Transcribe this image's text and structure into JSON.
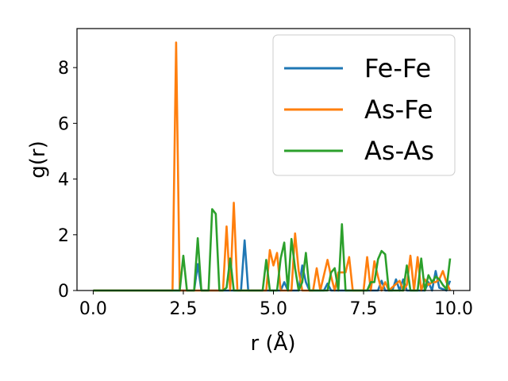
{
  "chart_data": {
    "type": "line",
    "title": "",
    "xlabel": "r (Å)",
    "ylabel": "g(r)",
    "xlim": [
      -0.45,
      10.45
    ],
    "ylim": [
      0,
      9.4
    ],
    "xticks": [
      0.0,
      2.5,
      5.0,
      7.5,
      10.0
    ],
    "xtick_labels": [
      "0.0",
      "2.5",
      "5.0",
      "7.5",
      "10.0"
    ],
    "yticks": [
      0,
      2,
      4,
      6,
      8
    ],
    "ytick_labels": [
      "0",
      "2",
      "4",
      "6",
      "8"
    ],
    "grid": false,
    "legend": "top-right",
    "series": [
      {
        "name": "Fe-Fe",
        "color": "#1f77b4",
        "points": [
          [
            0.0,
            0
          ],
          [
            2.8,
            0
          ],
          [
            2.9,
            0.95
          ],
          [
            3.0,
            0
          ],
          [
            4.1,
            0
          ],
          [
            4.2,
            1.8
          ],
          [
            4.3,
            0
          ],
          [
            5.2,
            0
          ],
          [
            5.3,
            0.3
          ],
          [
            5.4,
            0
          ],
          [
            5.7,
            0
          ],
          [
            5.8,
            0.9
          ],
          [
            5.9,
            0.3
          ],
          [
            6.0,
            0
          ],
          [
            6.4,
            0
          ],
          [
            6.5,
            0.25
          ],
          [
            6.6,
            0
          ],
          [
            7.9,
            0
          ],
          [
            8.0,
            0.35
          ],
          [
            8.1,
            0
          ],
          [
            8.3,
            0
          ],
          [
            8.4,
            0.4
          ],
          [
            8.5,
            0
          ],
          [
            8.6,
            0.4
          ],
          [
            8.7,
            0
          ],
          [
            9.2,
            0
          ],
          [
            9.3,
            0.3
          ],
          [
            9.4,
            0
          ],
          [
            9.5,
            0.7
          ],
          [
            9.6,
            0.1
          ],
          [
            9.8,
            0
          ],
          [
            9.9,
            0.35
          ]
        ]
      },
      {
        "name": "As-Fe",
        "color": "#ff7f0e",
        "points": [
          [
            0.0,
            0
          ],
          [
            2.2,
            0
          ],
          [
            2.3,
            8.9
          ],
          [
            2.4,
            0
          ],
          [
            3.6,
            0
          ],
          [
            3.7,
            2.3
          ],
          [
            3.8,
            0
          ],
          [
            3.9,
            3.15
          ],
          [
            4.0,
            0
          ],
          [
            4.8,
            0
          ],
          [
            4.9,
            1.45
          ],
          [
            5.0,
            0.9
          ],
          [
            5.1,
            1.35
          ],
          [
            5.2,
            0
          ],
          [
            5.5,
            0
          ],
          [
            5.6,
            2.05
          ],
          [
            5.7,
            0.7
          ],
          [
            5.8,
            0
          ],
          [
            6.1,
            0
          ],
          [
            6.2,
            0.8
          ],
          [
            6.3,
            0
          ],
          [
            6.5,
            1.1
          ],
          [
            6.6,
            0.5
          ],
          [
            6.7,
            0
          ],
          [
            6.8,
            0.65
          ],
          [
            6.9,
            0.65
          ],
          [
            7.0,
            0.65
          ],
          [
            7.1,
            1.2
          ],
          [
            7.2,
            0
          ],
          [
            7.5,
            0
          ],
          [
            7.6,
            1.2
          ],
          [
            7.7,
            0
          ],
          [
            7.8,
            1.05
          ],
          [
            7.9,
            0.5
          ],
          [
            8.0,
            0
          ],
          [
            8.1,
            0.3
          ],
          [
            8.2,
            0
          ],
          [
            8.5,
            0.35
          ],
          [
            8.6,
            0
          ],
          [
            8.7,
            0.2
          ],
          [
            8.8,
            1.25
          ],
          [
            8.9,
            0
          ],
          [
            9.0,
            1.2
          ],
          [
            9.1,
            0
          ],
          [
            9.2,
            0.4
          ],
          [
            9.3,
            0.2
          ],
          [
            9.4,
            0.3
          ],
          [
            9.5,
            0.3
          ],
          [
            9.6,
            0.4
          ],
          [
            9.7,
            0.7
          ],
          [
            9.8,
            0.3
          ],
          [
            9.9,
            0
          ]
        ]
      },
      {
        "name": "As-As",
        "color": "#2ca02c",
        "points": [
          [
            0.0,
            0
          ],
          [
            2.4,
            0
          ],
          [
            2.5,
            1.25
          ],
          [
            2.6,
            0
          ],
          [
            2.8,
            0
          ],
          [
            2.9,
            1.88
          ],
          [
            3.0,
            0
          ],
          [
            3.2,
            0
          ],
          [
            3.3,
            2.92
          ],
          [
            3.4,
            2.75
          ],
          [
            3.5,
            0
          ],
          [
            3.6,
            0
          ],
          [
            3.7,
            0.1
          ],
          [
            3.8,
            1.15
          ],
          [
            3.9,
            0
          ],
          [
            4.7,
            0
          ],
          [
            4.8,
            1.1
          ],
          [
            4.9,
            0
          ],
          [
            5.1,
            0
          ],
          [
            5.2,
            1.15
          ],
          [
            5.3,
            1.72
          ],
          [
            5.4,
            0
          ],
          [
            5.5,
            1.85
          ],
          [
            5.6,
            0.8
          ],
          [
            5.7,
            0
          ],
          [
            5.8,
            0.3
          ],
          [
            5.9,
            1.35
          ],
          [
            6.0,
            0
          ],
          [
            6.5,
            0
          ],
          [
            6.6,
            0.65
          ],
          [
            6.7,
            0.8
          ],
          [
            6.8,
            0
          ],
          [
            6.9,
            2.38
          ],
          [
            7.0,
            0
          ],
          [
            7.6,
            0
          ],
          [
            7.7,
            0.3
          ],
          [
            7.8,
            0.3
          ],
          [
            7.9,
            1.12
          ],
          [
            8.0,
            1.42
          ],
          [
            8.1,
            1.3
          ],
          [
            8.2,
            0
          ],
          [
            8.6,
            0
          ],
          [
            8.7,
            0.9
          ],
          [
            8.8,
            0
          ],
          [
            9.0,
            0
          ],
          [
            9.1,
            1.15
          ],
          [
            9.2,
            0
          ],
          [
            9.3,
            0.55
          ],
          [
            9.4,
            0.3
          ],
          [
            9.5,
            0.5
          ],
          [
            9.6,
            0.4
          ],
          [
            9.7,
            0.2
          ],
          [
            9.8,
            0.05
          ],
          [
            9.9,
            1.15
          ]
        ]
      }
    ]
  }
}
